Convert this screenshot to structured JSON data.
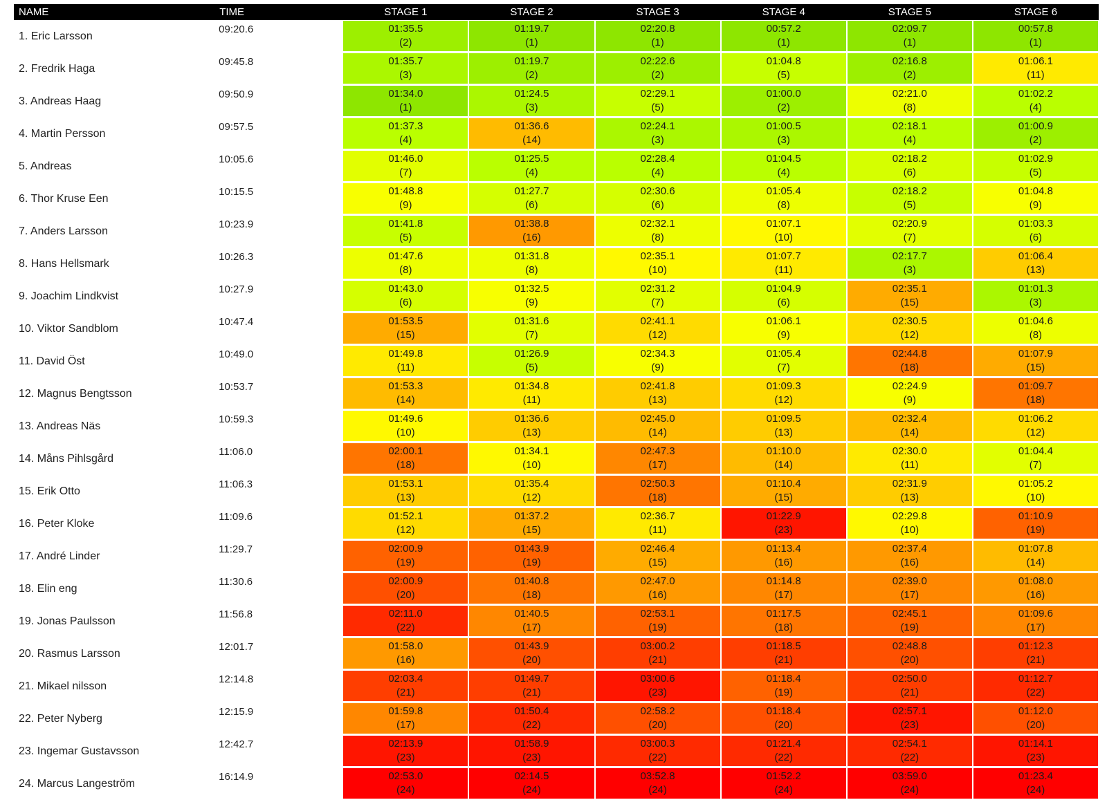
{
  "chart_data": {
    "type": "table",
    "columns": [
      "NAME",
      "TIME",
      "STAGE 1",
      "STAGE 2",
      "STAGE 3",
      "STAGE 4",
      "STAGE 5",
      "STAGE 6"
    ],
    "rows": [
      {
        "name": "1. Eric Larsson",
        "time": "09:20.6",
        "stages": [
          {
            "t": "01:35.5",
            "r": "(2)"
          },
          {
            "t": "01:19.7",
            "r": "(1)"
          },
          {
            "t": "02:20.8",
            "r": "(1)"
          },
          {
            "t": "00:57.2",
            "r": "(1)"
          },
          {
            "t": "02:09.7",
            "r": "(1)"
          },
          {
            "t": "00:57.8",
            "r": "(1)"
          }
        ]
      },
      {
        "name": "2. Fredrik Haga",
        "time": "09:45.8",
        "stages": [
          {
            "t": "01:35.7",
            "r": "(3)"
          },
          {
            "t": "01:19.7",
            "r": "(2)"
          },
          {
            "t": "02:22.6",
            "r": "(2)"
          },
          {
            "t": "01:04.8",
            "r": "(5)"
          },
          {
            "t": "02:16.8",
            "r": "(2)"
          },
          {
            "t": "01:06.1",
            "r": "(11)"
          }
        ]
      },
      {
        "name": "3. Andreas Haag",
        "time": "09:50.9",
        "stages": [
          {
            "t": "01:34.0",
            "r": "(1)"
          },
          {
            "t": "01:24.5",
            "r": "(3)"
          },
          {
            "t": "02:29.1",
            "r": "(5)"
          },
          {
            "t": "01:00.0",
            "r": "(2)"
          },
          {
            "t": "02:21.0",
            "r": "(8)"
          },
          {
            "t": "01:02.2",
            "r": "(4)"
          }
        ]
      },
      {
        "name": "4. Martin Persson",
        "time": "09:57.5",
        "stages": [
          {
            "t": "01:37.3",
            "r": "(4)"
          },
          {
            "t": "01:36.6",
            "r": "(14)"
          },
          {
            "t": "02:24.1",
            "r": "(3)"
          },
          {
            "t": "01:00.5",
            "r": "(3)"
          },
          {
            "t": "02:18.1",
            "r": "(4)"
          },
          {
            "t": "01:00.9",
            "r": "(2)"
          }
        ]
      },
      {
        "name": "5. Andreas",
        "time": "10:05.6",
        "stages": [
          {
            "t": "01:46.0",
            "r": "(7)"
          },
          {
            "t": "01:25.5",
            "r": "(4)"
          },
          {
            "t": "02:28.4",
            "r": "(4)"
          },
          {
            "t": "01:04.5",
            "r": "(4)"
          },
          {
            "t": "02:18.2",
            "r": "(6)"
          },
          {
            "t": "01:02.9",
            "r": "(5)"
          }
        ]
      },
      {
        "name": "6. Thor Kruse Een",
        "time": "10:15.5",
        "stages": [
          {
            "t": "01:48.8",
            "r": "(9)"
          },
          {
            "t": "01:27.7",
            "r": "(6)"
          },
          {
            "t": "02:30.6",
            "r": "(6)"
          },
          {
            "t": "01:05.4",
            "r": "(8)"
          },
          {
            "t": "02:18.2",
            "r": "(5)"
          },
          {
            "t": "01:04.8",
            "r": "(9)"
          }
        ]
      },
      {
        "name": "7. Anders Larsson",
        "time": "10:23.9",
        "stages": [
          {
            "t": "01:41.8",
            "r": "(5)"
          },
          {
            "t": "01:38.8",
            "r": "(16)"
          },
          {
            "t": "02:32.1",
            "r": "(8)"
          },
          {
            "t": "01:07.1",
            "r": "(10)"
          },
          {
            "t": "02:20.9",
            "r": "(7)"
          },
          {
            "t": "01:03.3",
            "r": "(6)"
          }
        ]
      },
      {
        "name": "8. Hans Hellsmark",
        "time": "10:26.3",
        "stages": [
          {
            "t": "01:47.6",
            "r": "(8)"
          },
          {
            "t": "01:31.8",
            "r": "(8)"
          },
          {
            "t": "02:35.1",
            "r": "(10)"
          },
          {
            "t": "01:07.7",
            "r": "(11)"
          },
          {
            "t": "02:17.7",
            "r": "(3)"
          },
          {
            "t": "01:06.4",
            "r": "(13)"
          }
        ]
      },
      {
        "name": "9. Joachim Lindkvist",
        "time": "10:27.9",
        "stages": [
          {
            "t": "01:43.0",
            "r": "(6)"
          },
          {
            "t": "01:32.5",
            "r": "(9)"
          },
          {
            "t": "02:31.2",
            "r": "(7)"
          },
          {
            "t": "01:04.9",
            "r": "(6)"
          },
          {
            "t": "02:35.1",
            "r": "(15)"
          },
          {
            "t": "01:01.3",
            "r": "(3)"
          }
        ]
      },
      {
        "name": "10. Viktor Sandblom",
        "time": "10:47.4",
        "stages": [
          {
            "t": "01:53.5",
            "r": "(15)"
          },
          {
            "t": "01:31.6",
            "r": "(7)"
          },
          {
            "t": "02:41.1",
            "r": "(12)"
          },
          {
            "t": "01:06.1",
            "r": "(9)"
          },
          {
            "t": "02:30.5",
            "r": "(12)"
          },
          {
            "t": "01:04.6",
            "r": "(8)"
          }
        ]
      },
      {
        "name": "11. David Öst",
        "time": "10:49.0",
        "stages": [
          {
            "t": "01:49.8",
            "r": "(11)"
          },
          {
            "t": "01:26.9",
            "r": "(5)"
          },
          {
            "t": "02:34.3",
            "r": "(9)"
          },
          {
            "t": "01:05.4",
            "r": "(7)"
          },
          {
            "t": "02:44.8",
            "r": "(18)"
          },
          {
            "t": "01:07.9",
            "r": "(15)"
          }
        ]
      },
      {
        "name": "12. Magnus Bengtsson",
        "time": "10:53.7",
        "stages": [
          {
            "t": "01:53.3",
            "r": "(14)"
          },
          {
            "t": "01:34.8",
            "r": "(11)"
          },
          {
            "t": "02:41.8",
            "r": "(13)"
          },
          {
            "t": "01:09.3",
            "r": "(12)"
          },
          {
            "t": "02:24.9",
            "r": "(9)"
          },
          {
            "t": "01:09.7",
            "r": "(18)"
          }
        ]
      },
      {
        "name": "13. Andreas Näs",
        "time": "10:59.3",
        "stages": [
          {
            "t": "01:49.6",
            "r": "(10)"
          },
          {
            "t": "01:36.6",
            "r": "(13)"
          },
          {
            "t": "02:45.0",
            "r": "(14)"
          },
          {
            "t": "01:09.5",
            "r": "(13)"
          },
          {
            "t": "02:32.4",
            "r": "(14)"
          },
          {
            "t": "01:06.2",
            "r": "(12)"
          }
        ]
      },
      {
        "name": "14. Måns Pihlsgård",
        "time": "11:06.0",
        "stages": [
          {
            "t": "02:00.1",
            "r": "(18)"
          },
          {
            "t": "01:34.1",
            "r": "(10)"
          },
          {
            "t": "02:47.3",
            "r": "(17)"
          },
          {
            "t": "01:10.0",
            "r": "(14)"
          },
          {
            "t": "02:30.0",
            "r": "(11)"
          },
          {
            "t": "01:04.4",
            "r": "(7)"
          }
        ]
      },
      {
        "name": "15. Erik Otto",
        "time": "11:06.3",
        "stages": [
          {
            "t": "01:53.1",
            "r": "(13)"
          },
          {
            "t": "01:35.4",
            "r": "(12)"
          },
          {
            "t": "02:50.3",
            "r": "(18)"
          },
          {
            "t": "01:10.4",
            "r": "(15)"
          },
          {
            "t": "02:31.9",
            "r": "(13)"
          },
          {
            "t": "01:05.2",
            "r": "(10)"
          }
        ]
      },
      {
        "name": "16. Peter Kloke",
        "time": "11:09.6",
        "stages": [
          {
            "t": "01:52.1",
            "r": "(12)"
          },
          {
            "t": "01:37.2",
            "r": "(15)"
          },
          {
            "t": "02:36.7",
            "r": "(11)"
          },
          {
            "t": "01:22.9",
            "r": "(23)"
          },
          {
            "t": "02:29.8",
            "r": "(10)"
          },
          {
            "t": "01:10.9",
            "r": "(19)"
          }
        ]
      },
      {
        "name": "17. André Linder",
        "time": "11:29.7",
        "stages": [
          {
            "t": "02:00.9",
            "r": "(19)"
          },
          {
            "t": "01:43.9",
            "r": "(19)"
          },
          {
            "t": "02:46.4",
            "r": "(15)"
          },
          {
            "t": "01:13.4",
            "r": "(16)"
          },
          {
            "t": "02:37.4",
            "r": "(16)"
          },
          {
            "t": "01:07.8",
            "r": "(14)"
          }
        ]
      },
      {
        "name": "18. Elin eng",
        "time": "11:30.6",
        "stages": [
          {
            "t": "02:00.9",
            "r": "(20)"
          },
          {
            "t": "01:40.8",
            "r": "(18)"
          },
          {
            "t": "02:47.0",
            "r": "(16)"
          },
          {
            "t": "01:14.8",
            "r": "(17)"
          },
          {
            "t": "02:39.0",
            "r": "(17)"
          },
          {
            "t": "01:08.0",
            "r": "(16)"
          }
        ]
      },
      {
        "name": "19. Jonas Paulsson",
        "time": "11:56.8",
        "stages": [
          {
            "t": "02:11.0",
            "r": "(22)"
          },
          {
            "t": "01:40.5",
            "r": "(17)"
          },
          {
            "t": "02:53.1",
            "r": "(19)"
          },
          {
            "t": "01:17.5",
            "r": "(18)"
          },
          {
            "t": "02:45.1",
            "r": "(19)"
          },
          {
            "t": "01:09.6",
            "r": "(17)"
          }
        ]
      },
      {
        "name": "20. Rasmus Larsson",
        "time": "12:01.7",
        "stages": [
          {
            "t": "01:58.0",
            "r": "(16)"
          },
          {
            "t": "01:43.9",
            "r": "(20)"
          },
          {
            "t": "03:00.2",
            "r": "(21)"
          },
          {
            "t": "01:18.5",
            "r": "(21)"
          },
          {
            "t": "02:48.8",
            "r": "(20)"
          },
          {
            "t": "01:12.3",
            "r": "(21)"
          }
        ]
      },
      {
        "name": "21. Mikael nilsson",
        "time": "12:14.8",
        "stages": [
          {
            "t": "02:03.4",
            "r": "(21)"
          },
          {
            "t": "01:49.7",
            "r": "(21)"
          },
          {
            "t": "03:00.6",
            "r": "(23)"
          },
          {
            "t": "01:18.4",
            "r": "(19)"
          },
          {
            "t": "02:50.0",
            "r": "(21)"
          },
          {
            "t": "01:12.7",
            "r": "(22)"
          }
        ]
      },
      {
        "name": "22. Peter Nyberg",
        "time": "12:15.9",
        "stages": [
          {
            "t": "01:59.8",
            "r": "(17)"
          },
          {
            "t": "01:50.4",
            "r": "(22)"
          },
          {
            "t": "02:58.2",
            "r": "(20)"
          },
          {
            "t": "01:18.4",
            "r": "(20)"
          },
          {
            "t": "02:57.1",
            "r": "(23)"
          },
          {
            "t": "01:12.0",
            "r": "(20)"
          }
        ]
      },
      {
        "name": "23. Ingemar Gustavsson",
        "time": "12:42.7",
        "stages": [
          {
            "t": "02:13.9",
            "r": "(23)"
          },
          {
            "t": "01:58.9",
            "r": "(23)"
          },
          {
            "t": "03:00.3",
            "r": "(22)"
          },
          {
            "t": "01:21.4",
            "r": "(22)"
          },
          {
            "t": "02:54.1",
            "r": "(22)"
          },
          {
            "t": "01:14.1",
            "r": "(23)"
          }
        ]
      },
      {
        "name": "24. Marcus Langeström",
        "time": "16:14.9",
        "stages": [
          {
            "t": "02:53.0",
            "r": "(24)"
          },
          {
            "t": "02:14.5",
            "r": "(24)"
          },
          {
            "t": "03:52.8",
            "r": "(24)"
          },
          {
            "t": "01:52.2",
            "r": "(24)"
          },
          {
            "t": "03:59.0",
            "r": "(24)"
          },
          {
            "t": "01:23.4",
            "r": "(24)"
          }
        ]
      }
    ]
  },
  "colors": {
    "header_bg": "#000000",
    "header_text": "#ffffff",
    "scale": [
      "#8ee600",
      "#b8ff00",
      "#dfff00",
      "#ffff00",
      "#ffd400",
      "#ffa500",
      "#ff7000",
      "#ff3c00",
      "#ff0000"
    ]
  }
}
